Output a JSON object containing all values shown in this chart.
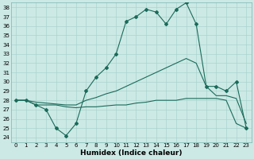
{
  "title": "",
  "xlabel": "Humidex (Indice chaleur)",
  "ylabel": "",
  "bg_color": "#cce9e5",
  "grid_color": "#aad4cf",
  "line_color": "#1a6b5a",
  "xlim": [
    -0.5,
    23.5
  ],
  "ylim": [
    23.5,
    38.5
  ],
  "yticks": [
    24,
    25,
    26,
    27,
    28,
    29,
    30,
    31,
    32,
    33,
    34,
    35,
    36,
    37,
    38
  ],
  "xticks": [
    0,
    1,
    2,
    3,
    4,
    5,
    6,
    7,
    8,
    9,
    10,
    11,
    12,
    13,
    14,
    15,
    16,
    17,
    18,
    19,
    20,
    21,
    22,
    23
  ],
  "series": {
    "main": [
      28.0,
      28.0,
      27.5,
      27.0,
      25.0,
      24.2,
      25.5,
      29.0,
      30.5,
      31.5,
      33.0,
      36.5,
      37.0,
      37.8,
      37.5,
      36.2,
      37.8,
      38.5,
      36.2,
      29.5,
      29.5,
      29.0,
      30.0,
      25.0
    ],
    "upper": [
      28.0,
      28.0,
      27.8,
      27.7,
      27.6,
      27.5,
      27.5,
      28.0,
      28.3,
      28.7,
      29.0,
      29.5,
      30.0,
      30.5,
      31.0,
      31.5,
      32.0,
      32.5,
      32.0,
      29.5,
      28.5,
      28.5,
      28.2,
      25.5
    ],
    "lower": [
      28.0,
      28.0,
      27.5,
      27.5,
      27.5,
      27.3,
      27.2,
      27.3,
      27.3,
      27.4,
      27.5,
      27.5,
      27.7,
      27.8,
      28.0,
      28.0,
      28.0,
      28.2,
      28.2,
      28.2,
      28.2,
      28.0,
      25.5,
      25.0
    ]
  }
}
